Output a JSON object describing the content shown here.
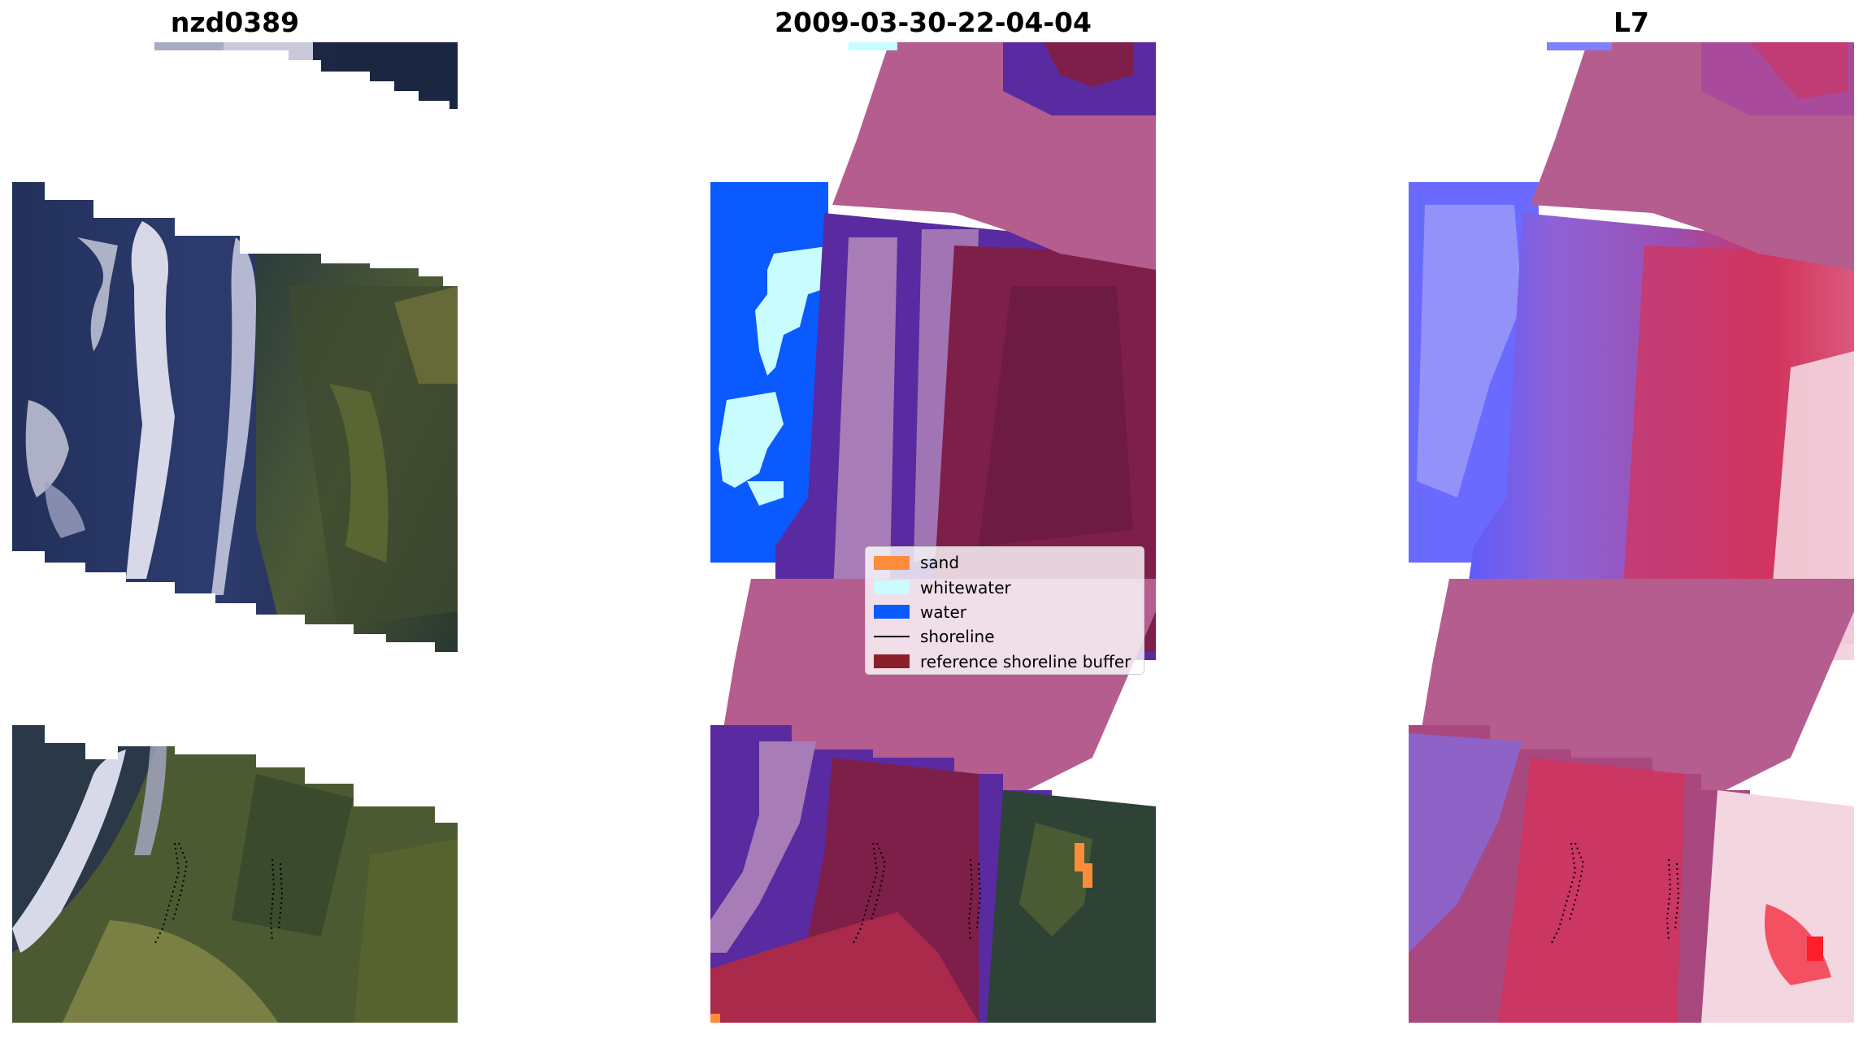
{
  "panels": [
    {
      "title": "nzd0389"
    },
    {
      "title": "2009-03-30-22-04-04"
    },
    {
      "title": "L7"
    }
  ],
  "legend": {
    "items": [
      {
        "label": "sand",
        "color": "#ff8c3c",
        "kind": "patch"
      },
      {
        "label": "whitewater",
        "color": "#c8fcff",
        "kind": "patch"
      },
      {
        "label": "water",
        "color": "#0a5aff",
        "kind": "patch"
      },
      {
        "label": "shoreline",
        "color": "#000000",
        "kind": "line"
      },
      {
        "label": "reference shoreline buffer",
        "color": "#8b1f2a",
        "kind": "patch"
      }
    ]
  },
  "colors": {
    "sea_dark": "#1e2a48",
    "sea_mid": "#2d3e73",
    "surf_white": "#d9dcea",
    "land_green": "#56613a",
    "land_dark": "#28362f",
    "buffer_pink": "#b55d8f",
    "class_purple": "#5a2aa0",
    "class_lavender": "#a87cb6",
    "buffer_red": "#7e1f4a",
    "sand": "#ff8c3c",
    "whitewater": "#c8fcff",
    "water": "#0a5aff",
    "l7_blue": "#5a5aff",
    "l7_purple": "#9b4eb0",
    "l7_red": "#d1345e",
    "l7_light": "#f4d6e0"
  }
}
